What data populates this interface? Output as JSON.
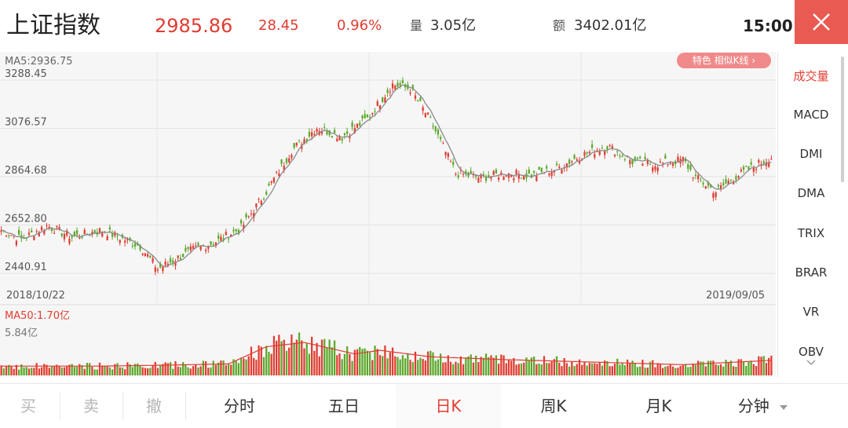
{
  "header": {
    "title": "上证指数",
    "price": "2985.86",
    "change": "28.45",
    "change_pct": "0.96%",
    "volume_label": "量",
    "volume": "3.05亿",
    "amount_label": "额",
    "amount": "3402.01亿",
    "time": "15:00"
  },
  "colors": {
    "up": "#e03c31",
    "down": "#5aa82a",
    "ma": "#8a8a8a",
    "accent": "#e85a52"
  },
  "chart": {
    "ma5_label": "MA5:2936.75",
    "badge_label": "特色  相似K线 ›",
    "y_ticks": [
      "3288.45",
      "3076.57",
      "2864.68",
      "2652.80",
      "2440.91"
    ],
    "date_start": "2018/10/22",
    "date_end": "2019/09/05",
    "vol_ma_label": "MA50:1.70亿",
    "vol_max_label": "5.84亿"
  },
  "chart_data": {
    "type": "candlestick",
    "y_ticks": [
      3288.45,
      3076.57,
      2864.68,
      2652.8,
      2440.91
    ],
    "date_range": [
      "2018/10/22",
      "2019/09/05"
    ],
    "ma5_last": 2936.75,
    "close_anchors": [
      [
        0,
        2630
      ],
      [
        8,
        2590
      ],
      [
        18,
        2650
      ],
      [
        28,
        2600
      ],
      [
        40,
        2630
      ],
      [
        55,
        2560
      ],
      [
        62,
        2460
      ],
      [
        75,
        2540
      ],
      [
        85,
        2580
      ],
      [
        95,
        2640
      ],
      [
        105,
        2800
      ],
      [
        115,
        2980
      ],
      [
        125,
        3080
      ],
      [
        135,
        3040
      ],
      [
        145,
        3120
      ],
      [
        155,
        3270
      ],
      [
        162,
        3250
      ],
      [
        170,
        3110
      ],
      [
        180,
        2880
      ],
      [
        190,
        2860
      ],
      [
        200,
        2880
      ],
      [
        210,
        2870
      ],
      [
        220,
        2900
      ],
      [
        230,
        2960
      ],
      [
        240,
        3000
      ],
      [
        250,
        2930
      ],
      [
        260,
        2920
      ],
      [
        270,
        2940
      ],
      [
        275,
        2860
      ],
      [
        283,
        2800
      ],
      [
        290,
        2860
      ],
      [
        298,
        2910
      ],
      [
        305,
        2950
      ]
    ],
    "volume": {
      "ma50_label": "MA50:1.70亿",
      "max_label": "5.84亿",
      "anchors": [
        [
          0,
          1.3
        ],
        [
          40,
          1.3
        ],
        [
          60,
          1.4
        ],
        [
          90,
          1.6
        ],
        [
          105,
          4.0
        ],
        [
          120,
          4.6
        ],
        [
          140,
          3.0
        ],
        [
          150,
          3.5
        ],
        [
          170,
          2.6
        ],
        [
          200,
          2.2
        ],
        [
          240,
          1.8
        ],
        [
          270,
          1.5
        ],
        [
          305,
          2.1
        ]
      ]
    }
  },
  "sidebar": {
    "items": [
      "成交量",
      "MACD",
      "DMI",
      "DMA",
      "TRIX",
      "BRAR",
      "VR",
      "OBV"
    ],
    "active": 0
  },
  "tabs": {
    "items": [
      "买",
      "卖",
      "撤",
      "分时",
      "五日",
      "日K",
      "周K",
      "月K",
      "分钟"
    ],
    "active": 5
  }
}
